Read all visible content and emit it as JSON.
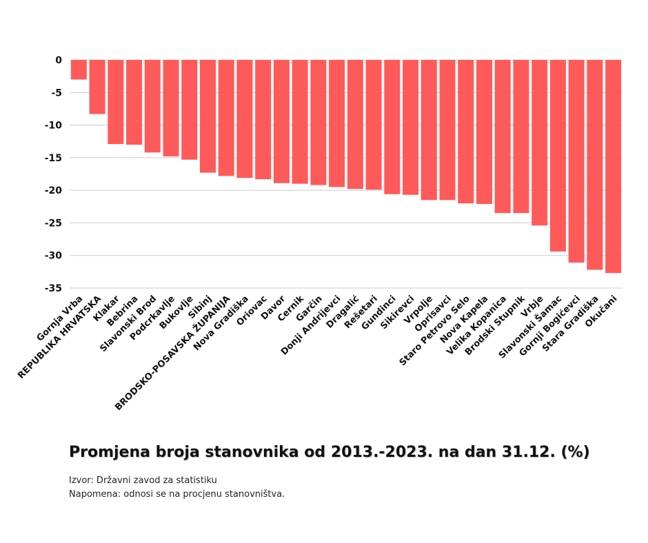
{
  "chart_data": {
    "type": "bar",
    "title": "Promjena broja stanovnika od 2013.-2023. na dan 31.12. (%)",
    "source": "Izvor: Državni zavod za statistiku",
    "note": "Napomena: odnosi se na procjenu stanovništva.",
    "xlabel": "",
    "ylabel": "",
    "ylim": [
      -35,
      0
    ],
    "yticks": [
      0,
      -5,
      -10,
      -15,
      -20,
      -25,
      -30,
      -35
    ],
    "grid": true,
    "bar_color": "#ff5a5a",
    "categories": [
      "Gornja Vrba",
      "REPUBLIKA HRVATSKA",
      "Klakar",
      "Bebrina",
      "Slavonski Brod",
      "Podcrkavlje",
      "Bukovlje",
      "Sibinj",
      "BRODSKO-POSAVSKA ŽUPANIJA",
      "Nova Gradiška",
      "Oriovac",
      "Davor",
      "Cernik",
      "Garčin",
      "Donji Andrijevci",
      "Dragalić",
      "Rešetari",
      "Gundinci",
      "Sikirevci",
      "Vrpolje",
      "Oprisavci",
      "Staro Petrovo Selo",
      "Nova Kapela",
      "Velika Kopanica",
      "Brodski Stupnik",
      "Vrbje",
      "Slavonski Šamac",
      "Gornji Bogićevci",
      "Stara Gradiška",
      "Okučani"
    ],
    "values": [
      -3.0,
      -8.3,
      -12.9,
      -13.0,
      -14.2,
      -14.8,
      -15.3,
      -17.3,
      -17.8,
      -18.1,
      -18.3,
      -18.9,
      -19.0,
      -19.2,
      -19.5,
      -19.8,
      -19.9,
      -20.6,
      -20.7,
      -21.5,
      -21.5,
      -22.0,
      -22.1,
      -23.5,
      -23.5,
      -25.4,
      -29.4,
      -31.1,
      -32.2,
      -32.7
    ]
  }
}
